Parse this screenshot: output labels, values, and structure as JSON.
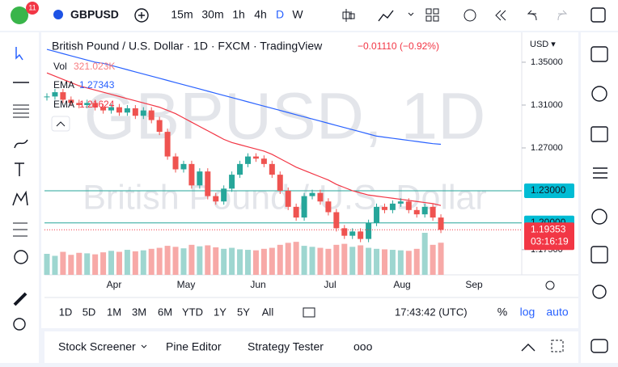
{
  "toolbar": {
    "badge": "11",
    "symbol": "GBPUSD",
    "intervals": [
      "15m",
      "30m",
      "1h",
      "4h",
      "D",
      "W"
    ]
  },
  "legend": {
    "title": "British Pound / U.S. Dollar · 1D · FXCM · TradingView",
    "change": "−0.01110 (−0.92%)",
    "vol_label": "Vol",
    "vol_value": "321.023K",
    "ema1_label": "EMA",
    "ema1_value": "1.27343",
    "ema2_label": "EMA",
    "ema2_value": "1.21624"
  },
  "watermark": {
    "symbol": "GBPUSD, 1D",
    "name": "British Pound / U.S. Dollar"
  },
  "chart_data": {
    "type": "candlestick",
    "currency": "USD ▾",
    "months": [
      "Apr",
      "May",
      "Jun",
      "Jul",
      "Aug",
      "Sep"
    ],
    "closes": [
      1.318,
      1.322,
      1.315,
      1.312,
      1.31,
      1.312,
      1.308,
      1.305,
      1.308,
      1.303,
      1.307,
      1.3,
      1.305,
      1.296,
      1.285,
      1.262,
      1.25,
      1.255,
      1.235,
      1.248,
      1.225,
      1.22,
      1.232,
      1.245,
      1.255,
      1.262,
      1.26,
      1.255,
      1.245,
      1.23,
      1.215,
      1.205,
      1.225,
      1.228,
      1.22,
      1.21,
      1.195,
      1.188,
      1.192,
      1.185,
      1.2,
      1.215,
      1.212,
      1.218,
      1.22,
      1.212,
      1.208,
      1.215,
      1.205,
      1.19353
    ],
    "ema200": [
      1.362,
      1.36,
      1.358,
      1.356,
      1.354,
      1.352,
      1.35,
      1.349,
      1.347,
      1.345,
      1.343,
      1.341,
      1.339,
      1.337,
      1.335,
      1.333,
      1.331,
      1.329,
      1.327,
      1.325,
      1.323,
      1.321,
      1.319,
      1.317,
      1.315,
      1.313,
      1.311,
      1.309,
      1.307,
      1.305,
      1.303,
      1.301,
      1.299,
      1.297,
      1.295,
      1.293,
      1.291,
      1.289,
      1.287,
      1.285,
      1.283,
      1.281,
      1.28,
      1.279,
      1.278,
      1.277,
      1.276,
      1.275,
      1.274,
      1.2734
    ],
    "ema50": [
      1.34,
      1.337,
      1.334,
      1.331,
      1.328,
      1.326,
      1.324,
      1.322,
      1.32,
      1.318,
      1.316,
      1.314,
      1.312,
      1.31,
      1.308,
      1.305,
      1.302,
      1.298,
      1.294,
      1.29,
      1.286,
      1.282,
      1.278,
      1.275,
      1.273,
      1.271,
      1.269,
      1.267,
      1.264,
      1.26,
      1.256,
      1.252,
      1.249,
      1.246,
      1.243,
      1.24,
      1.236,
      1.233,
      1.23,
      1.228,
      1.226,
      1.225,
      1.224,
      1.223,
      1.222,
      1.221,
      1.22,
      1.219,
      1.218,
      1.21624
    ],
    "volume": [
      210,
      190,
      230,
      200,
      220,
      215,
      205,
      225,
      240,
      230,
      250,
      235,
      245,
      260,
      270,
      290,
      280,
      265,
      300,
      285,
      295,
      275,
      260,
      270,
      255,
      250,
      245,
      260,
      270,
      300,
      320,
      330,
      290,
      280,
      270,
      260,
      300,
      310,
      280,
      295,
      270,
      260,
      255,
      250,
      245,
      240,
      260,
      420,
      300,
      321.023
    ],
    "ylim": [
      1.1515,
      1.3779
    ],
    "yticks": [
      {
        "value": 1.35,
        "label": "1.35000"
      },
      {
        "value": 1.31,
        "label": "1.31000"
      },
      {
        "value": 1.27,
        "label": "1.27000"
      },
      {
        "value": 1.175,
        "label": "1.17500"
      }
    ],
    "levels": [
      {
        "value": 1.23,
        "label": "1.23000"
      },
      {
        "value": 1.2,
        "label": "1.20000"
      }
    ],
    "last": {
      "value": 1.19353,
      "label": "1.19353",
      "countdown": "03:16:19"
    }
  },
  "range_bar": {
    "ranges": [
      "1D",
      "5D",
      "1M",
      "3M",
      "6M",
      "YTD",
      "1Y",
      "5Y",
      "All"
    ],
    "time": "17:43:42 (UTC)",
    "percent": "%",
    "log": "log",
    "auto": "auto"
  },
  "tabs": [
    "Stock Screener",
    "Pine Editor",
    "Strategy Tester",
    "ooo"
  ]
}
